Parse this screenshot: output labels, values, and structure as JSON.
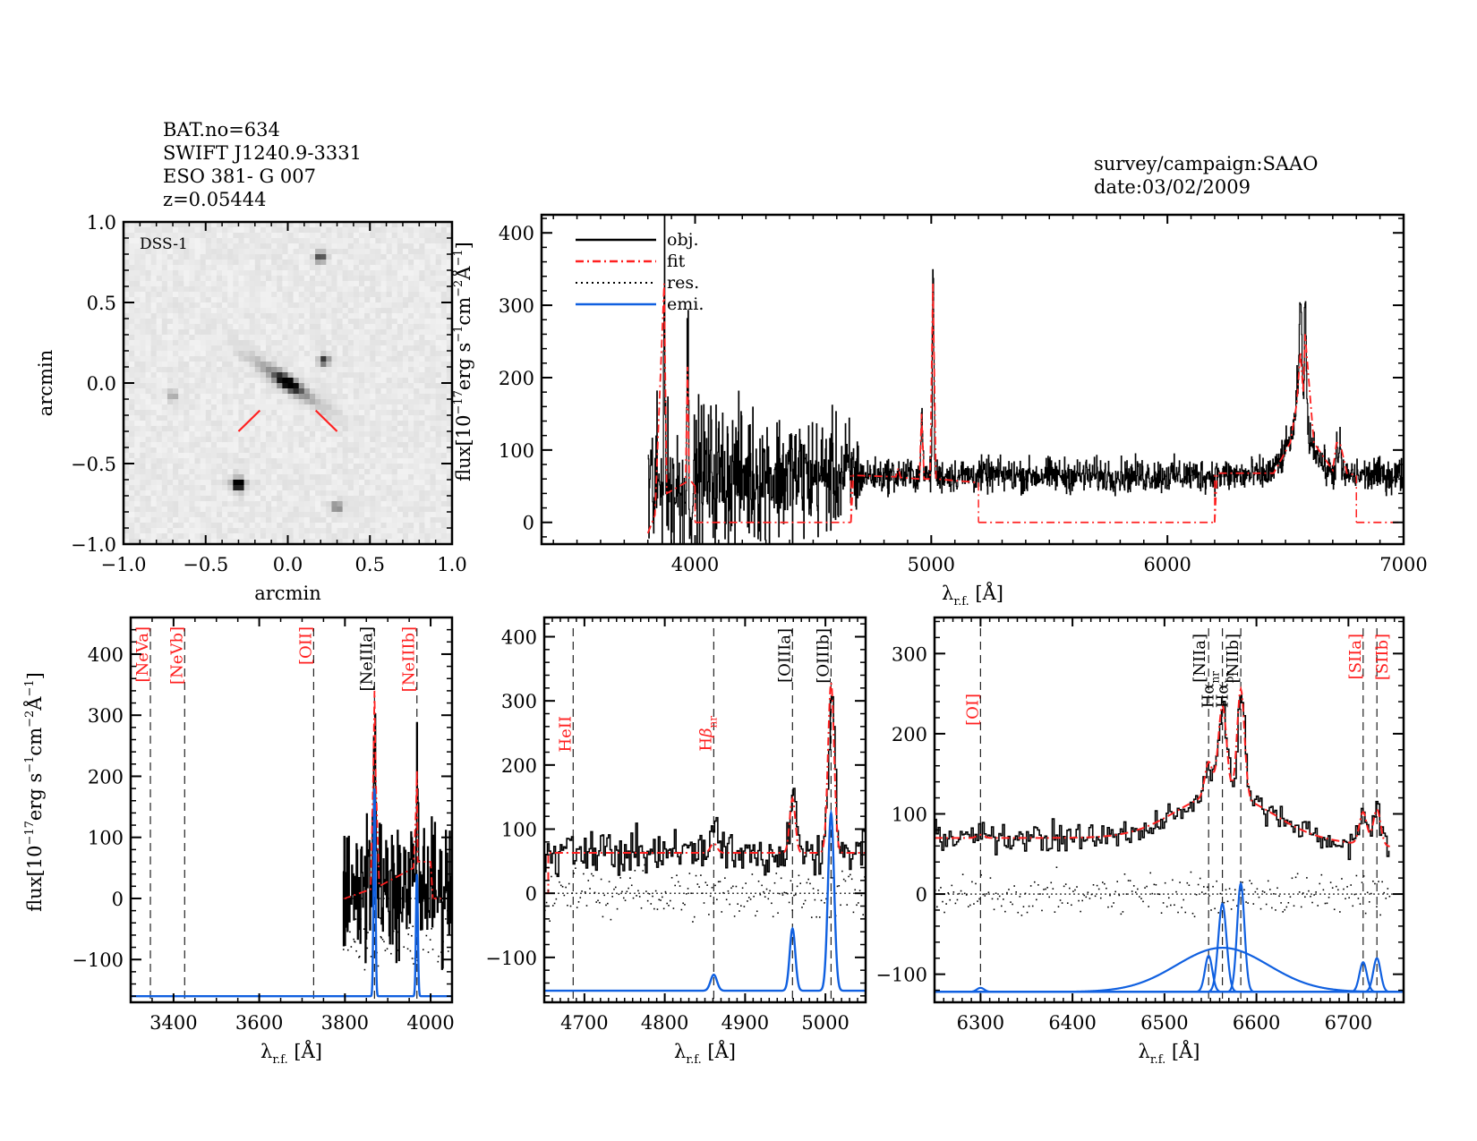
{
  "header_left": {
    "lines": [
      "BAT.no=634",
      "SWIFT J1240.9-3331",
      "ESO 381- G 007",
      "z=0.05444"
    ]
  },
  "header_right": {
    "lines": [
      "survey/campaign:SAAO",
      "date:03/02/2009"
    ]
  },
  "colors": {
    "obj": "#000000",
    "fit": "#ff2020",
    "res": "#000000",
    "emi": "#1060e0",
    "marker": "#ff2020",
    "label_red": "#ff2020",
    "label_black": "#000000"
  },
  "chart_data": [
    {
      "id": "image",
      "type": "heatmap",
      "title": "DSS-1",
      "xlabel": "arcmin",
      "ylabel": "arcmin",
      "xlim": [
        -1.0,
        1.0
      ],
      "ylim": [
        -1.0,
        1.0
      ],
      "xticks": [
        "-1.0",
        "-0.5",
        "0.0",
        "0.5",
        "1.0"
      ],
      "yticks": [
        "-1.0",
        "-0.5",
        "0.0",
        "0.5",
        "1.0"
      ],
      "sources": [
        {
          "name": "target-galaxy",
          "x": 0.0,
          "y": 0.0,
          "kind": "elongated",
          "angle_deg": -35,
          "extent": 0.45
        },
        {
          "name": "bright-star",
          "x": -0.3,
          "y": -0.63,
          "kind": "star",
          "brightness": 1.0
        },
        {
          "name": "star-top",
          "x": 0.2,
          "y": 0.78,
          "kind": "star",
          "brightness": 0.7
        },
        {
          "name": "star-mid",
          "x": 0.22,
          "y": 0.14,
          "kind": "star",
          "brightness": 0.7
        },
        {
          "name": "star-bottom",
          "x": 0.3,
          "y": -0.77,
          "kind": "star",
          "brightness": 0.5
        },
        {
          "name": "faint-left",
          "x": -0.7,
          "y": -0.08,
          "kind": "star",
          "brightness": 0.3
        }
      ],
      "markers": [
        {
          "x1": -0.3,
          "y1": -0.3,
          "x2": -0.17,
          "y2": -0.17
        },
        {
          "x1": 0.17,
          "y1": -0.17,
          "x2": 0.3,
          "y2": -0.3
        }
      ]
    },
    {
      "id": "full",
      "type": "line",
      "xlabel": "λ_r.f. [Å]",
      "ylabel": "flux[10^-17 erg s^-1 cm^-2 Å^-1]",
      "xlim": [
        3350,
        7000
      ],
      "ylim": [
        -30,
        425
      ],
      "xticks": [
        4000,
        5000,
        6000,
        7000
      ],
      "yticks": [
        0,
        100,
        200,
        300,
        400
      ],
      "legend": {
        "position": "top-left",
        "entries": [
          {
            "label": "obj.",
            "style": "solid",
            "color_key": "obj"
          },
          {
            "label": "fit",
            "style": "dashdot",
            "color_key": "fit"
          },
          {
            "label": "res.",
            "style": "dotted",
            "color_key": "res"
          },
          {
            "label": "emi.",
            "style": "solid",
            "color_key": "emi"
          }
        ]
      },
      "obj": {
        "start": 3800,
        "end": 7000,
        "continuum": 65,
        "noise_blue": 70,
        "noise_red": 18,
        "lines": [
          [
            3869,
            330,
            3
          ],
          [
            3968,
            210,
            3
          ],
          [
            4959,
            110,
            3
          ],
          [
            5007,
            300,
            3
          ],
          [
            6548,
            50,
            4
          ],
          [
            6563,
            170,
            6
          ],
          [
            6583,
            180,
            4
          ],
          [
            6716,
            40,
            4
          ],
          [
            6731,
            40,
            4
          ]
        ],
        "broad": [
          6563,
          70,
          55
        ]
      },
      "fit_segments": [
        {
          "x": [
            3800,
            3830,
            3869,
            3880,
            3960,
            3968,
            3975,
            4000
          ],
          "y": [
            -15,
            10,
            330,
            40,
            55,
            215,
            60,
            50
          ]
        },
        {
          "x": [
            4000,
            4010,
            4660
          ],
          "y": [
            0,
            0,
            0
          ]
        },
        {
          "x": [
            4660,
            4670,
            4850,
            4861,
            4870,
            4950,
            4959,
            4970,
            4995,
            5007,
            5020,
            5200
          ],
          "y": [
            0,
            65,
            63,
            75,
            62,
            60,
            150,
            60,
            60,
            330,
            60,
            55
          ]
        },
        {
          "x": [
            5200,
            5210,
            6200
          ],
          "y": [
            0,
            0,
            0
          ]
        },
        {
          "x": [
            6200,
            6210,
            6450,
            6520,
            6548,
            6563,
            6575,
            6583,
            6620,
            6700,
            6716,
            6731,
            6760,
            6800
          ],
          "y": [
            0,
            68,
            68,
            110,
            165,
            235,
            180,
            260,
            110,
            72,
            110,
            110,
            68,
            65
          ]
        },
        {
          "x": [
            6800,
            6810,
            7000
          ],
          "y": [
            0,
            0,
            0
          ]
        }
      ]
    },
    {
      "id": "zoom1",
      "type": "line",
      "xlabel": "λ_r.f. [Å]",
      "ylabel": "flux[10^-17 erg s^-1 cm^-2 Å^-1]",
      "xlim": [
        3300,
        4050
      ],
      "ylim": [
        -170,
        460
      ],
      "xticks": [
        3400,
        3600,
        3800,
        4000
      ],
      "yticks": [
        -100,
        0,
        100,
        200,
        300,
        400
      ],
      "emi_base": -160,
      "line_markers": [
        {
          "label": "[NeVa]",
          "x": 3346,
          "color_key": "label_red"
        },
        {
          "label": "[NeVb]",
          "x": 3426,
          "color_key": "label_red"
        },
        {
          "label": "[OII]",
          "x": 3727,
          "color_key": "label_red"
        },
        {
          "label": "[NeIIIa]",
          "x": 3869,
          "color_key": "label_black"
        },
        {
          "label": "[NeIIIb]",
          "x": 3968,
          "color_key": "label_red"
        }
      ],
      "obj": {
        "start": 3795,
        "end": 4050,
        "continuum": 20,
        "noise": 85,
        "lines": [
          [
            3869,
            320,
            2
          ],
          [
            3968,
            180,
            2
          ]
        ]
      },
      "fit": {
        "x": [
          3795,
          3800,
          3860,
          3866,
          3869,
          3872,
          3880,
          3960,
          3966,
          3968,
          3970,
          3990,
          4000,
          4005,
          4050
        ],
        "y": [
          0,
          0,
          15,
          200,
          340,
          200,
          20,
          50,
          150,
          210,
          60,
          60,
          60,
          0,
          0
        ]
      },
      "emi": [
        {
          "center": 3869,
          "amp": 340,
          "sigma": 2.2
        },
        {
          "center": 3968,
          "amp": 200,
          "sigma": 2.2
        }
      ]
    },
    {
      "id": "zoom2",
      "type": "line",
      "xlabel": "λ_r.f. [Å]",
      "ylabel": "",
      "xlim": [
        4650,
        5050
      ],
      "ylim": [
        -170,
        430
      ],
      "xticks": [
        4700,
        4800,
        4900,
        5000
      ],
      "yticks": [
        -100,
        0,
        100,
        200,
        300,
        400
      ],
      "emi_base": -152,
      "line_markers": [
        {
          "label": "HeII",
          "x": 4686,
          "color_key": "label_red"
        },
        {
          "label": "Hβ_nr",
          "x": 4861,
          "color_key": "label_red"
        },
        {
          "label": "[OIIIa]",
          "x": 4959,
          "color_key": "label_black"
        },
        {
          "label": "[OIIIb]",
          "x": 5007,
          "color_key": "label_black"
        }
      ],
      "obj": {
        "start": 4650,
        "end": 5050,
        "continuum": 65,
        "noise": 28,
        "lines": [
          [
            4861,
            35,
            4
          ],
          [
            4959,
            110,
            3.5
          ],
          [
            5007,
            250,
            3.8
          ]
        ]
      },
      "fit": {
        "cont": 63,
        "lines": [
          [
            4861,
            15,
            4
          ],
          [
            4959,
            85,
            3.5
          ],
          [
            5007,
            265,
            3.8
          ]
        ]
      },
      "emi": [
        {
          "center": 4861,
          "amp": 25,
          "sigma": 4
        },
        {
          "center": 4959,
          "amp": 97,
          "sigma": 3.5
        },
        {
          "center": 5007,
          "amp": 277,
          "sigma": 3.8
        }
      ]
    },
    {
      "id": "zoom3",
      "type": "line",
      "xlabel": "λ_r.f. [Å]",
      "ylabel": "",
      "xlim": [
        6250,
        6760
      ],
      "ylim": [
        -135,
        345
      ],
      "xticks": [
        6300,
        6400,
        6500,
        6600,
        6700
      ],
      "yticks": [
        -100,
        0,
        100,
        200,
        300
      ],
      "emi_base": -122,
      "line_markers": [
        {
          "label": "[OI]",
          "x": 6300,
          "color_key": "label_red"
        },
        {
          "label": "[NIIa]",
          "x": 6548,
          "color_key": "label_black"
        },
        {
          "label": "Hα_nr",
          "x": 6563,
          "color_key": "label_black"
        },
        {
          "label": "Hα_br",
          "x": 6563,
          "color_key": "label_black"
        },
        {
          "label": "[NIIb]",
          "x": 6583,
          "color_key": "label_black"
        },
        {
          "label": "[SIIa]",
          "x": 6716,
          "color_key": "label_red"
        },
        {
          "label": "[SIIb]",
          "x": 6731,
          "color_key": "label_red"
        }
      ],
      "obj": {
        "start": 6250,
        "end": 6745,
        "noise": 14
      },
      "fit": {
        "base": 70,
        "broad": [
          6563,
          55,
          50
        ],
        "lines": [
          [
            6300,
            4,
            4
          ],
          [
            6548,
            42,
            4
          ],
          [
            6563,
            110,
            4.5
          ],
          [
            6583,
            135,
            4
          ],
          [
            6716,
            40,
            4
          ],
          [
            6731,
            45,
            4
          ]
        ],
        "slope_red": -12
      },
      "emi": [
        {
          "center": 6300,
          "amp": 5,
          "sigma": 4
        },
        {
          "center": 6563,
          "amp": 55,
          "sigma": 50
        },
        {
          "center": 6548,
          "amp": 45,
          "sigma": 4
        },
        {
          "center": 6563,
          "amp": 110,
          "sigma": 4.5
        },
        {
          "center": 6583,
          "amp": 135,
          "sigma": 4
        },
        {
          "center": 6716,
          "amp": 37,
          "sigma": 4
        },
        {
          "center": 6731,
          "amp": 42,
          "sigma": 4
        }
      ]
    }
  ]
}
